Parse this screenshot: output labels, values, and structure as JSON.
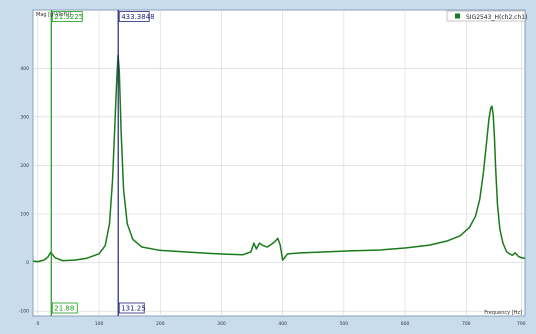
{
  "chart_data": {
    "type": "line",
    "ylabel": "Mag [g²/(lbf²)]",
    "xlabel": "Frequency [Hz]",
    "xlim": [
      -8,
      796
    ],
    "ylim": [
      -110,
      520
    ],
    "x_ticks": [
      0,
      100,
      200,
      300,
      400,
      500,
      600,
      700,
      790
    ],
    "y_ticks": [
      -100,
      0,
      100,
      200,
      300,
      400
    ],
    "grid": true,
    "legend_position": "top-right",
    "series": [
      {
        "name": "SIG2543_H(ch2,ch1)",
        "color": "#1a7a1a",
        "x": [
          -8,
          0,
          10,
          16,
          21,
          28,
          40,
          60,
          80,
          100,
          110,
          117,
          122,
          126,
          129,
          131,
          133,
          136,
          140,
          146,
          155,
          170,
          200,
          240,
          280,
          310,
          335,
          348,
          353,
          357,
          362,
          368,
          375,
          382,
          388,
          392,
          396,
          400,
          408,
          430,
          470,
          510,
          560,
          600,
          640,
          670,
          690,
          705,
          715,
          722,
          728,
          733,
          737,
          740,
          742,
          744,
          746,
          748,
          751,
          755,
          760,
          766,
          771,
          775,
          780,
          785,
          790,
          796
        ],
        "y": [
          3,
          2,
          5,
          11,
          21,
          10,
          4,
          5,
          9,
          18,
          35,
          80,
          170,
          290,
          380,
          427,
          395,
          270,
          150,
          80,
          48,
          32,
          25,
          22,
          19,
          17,
          16,
          22,
          40,
          28,
          40,
          35,
          32,
          38,
          44,
          50,
          36,
          5,
          18,
          20,
          22,
          24,
          26,
          30,
          36,
          45,
          55,
          72,
          95,
          130,
          185,
          245,
          295,
          318,
          322,
          305,
          260,
          195,
          120,
          68,
          40,
          22,
          18,
          15,
          20,
          13,
          10,
          9
        ]
      }
    ],
    "cursors": [
      {
        "x": 21.88,
        "y": 21.5225,
        "x_label": "21.88",
        "y_label": "21.5225",
        "color": "#1a9a1a"
      },
      {
        "x": 131.25,
        "y": 433.3848,
        "x_label": "131.25",
        "y_label": "433.3848",
        "color": "#22227a"
      }
    ]
  }
}
